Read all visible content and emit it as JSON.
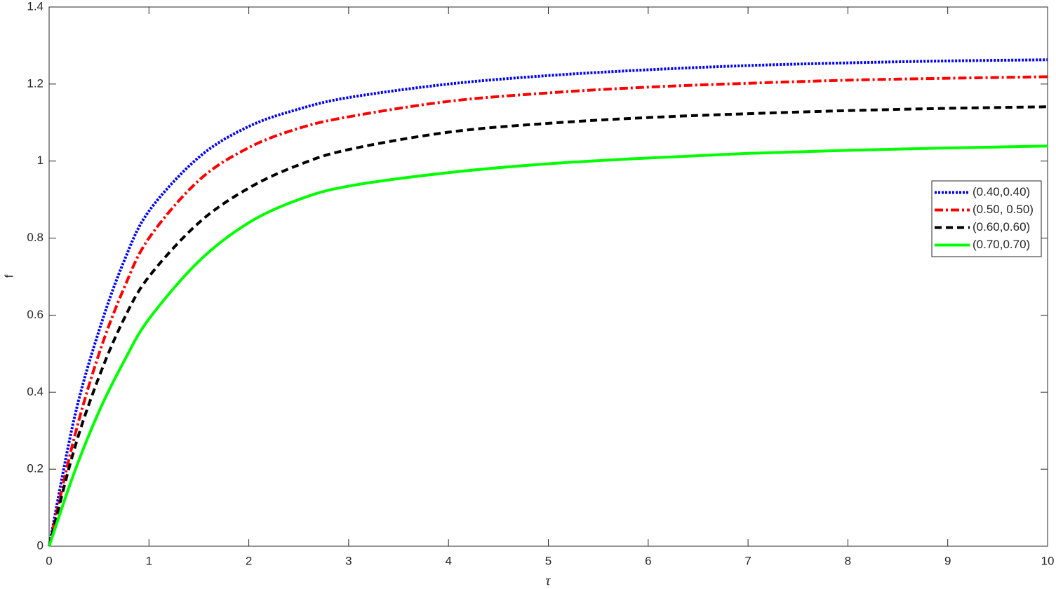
{
  "chart_data": {
    "type": "line",
    "x_label": "τ",
    "y_label": "f",
    "x": [
      0,
      0.25,
      0.5,
      0.75,
      1,
      1.5,
      2,
      2.5,
      3,
      4,
      5,
      6,
      7,
      8,
      9,
      10
    ],
    "series": [
      {
        "name": "(0.40,0.40)",
        "color": "#0000ff",
        "linestyle": "dotted",
        "values": [
          0,
          0.33,
          0.56,
          0.74,
          0.87,
          1.01,
          1.09,
          1.135,
          1.165,
          1.2,
          1.222,
          1.237,
          1.248,
          1.255,
          1.26,
          1.263
        ]
      },
      {
        "name": "(0.50, 0.50)",
        "color": "#ff0000",
        "linestyle": "dashdot",
        "values": [
          0,
          0.28,
          0.5,
          0.67,
          0.8,
          0.95,
          1.035,
          1.085,
          1.115,
          1.155,
          1.177,
          1.192,
          1.202,
          1.21,
          1.215,
          1.219
        ]
      },
      {
        "name": "(0.60,0.60)",
        "color": "#000000",
        "linestyle": "dashed",
        "values": [
          0,
          0.25,
          0.44,
          0.59,
          0.7,
          0.84,
          0.93,
          0.99,
          1.03,
          1.075,
          1.098,
          1.113,
          1.123,
          1.131,
          1.137,
          1.141
        ]
      },
      {
        "name": "(0.70,0.70)",
        "color": "#00ff00",
        "linestyle": "solid",
        "values": [
          0,
          0.19,
          0.35,
          0.48,
          0.59,
          0.74,
          0.84,
          0.9,
          0.935,
          0.97,
          0.993,
          1.008,
          1.02,
          1.028,
          1.034,
          1.039
        ]
      }
    ],
    "xlim": [
      0,
      10
    ],
    "xticks": [
      0,
      1,
      2,
      3,
      4,
      5,
      6,
      7,
      8,
      9,
      10
    ],
    "ylim": [
      0,
      1.4
    ],
    "yticks": [
      0,
      0.2,
      0.4,
      0.6,
      0.8,
      1,
      1.2,
      1.4
    ],
    "grid": false,
    "legend_position": "right"
  }
}
